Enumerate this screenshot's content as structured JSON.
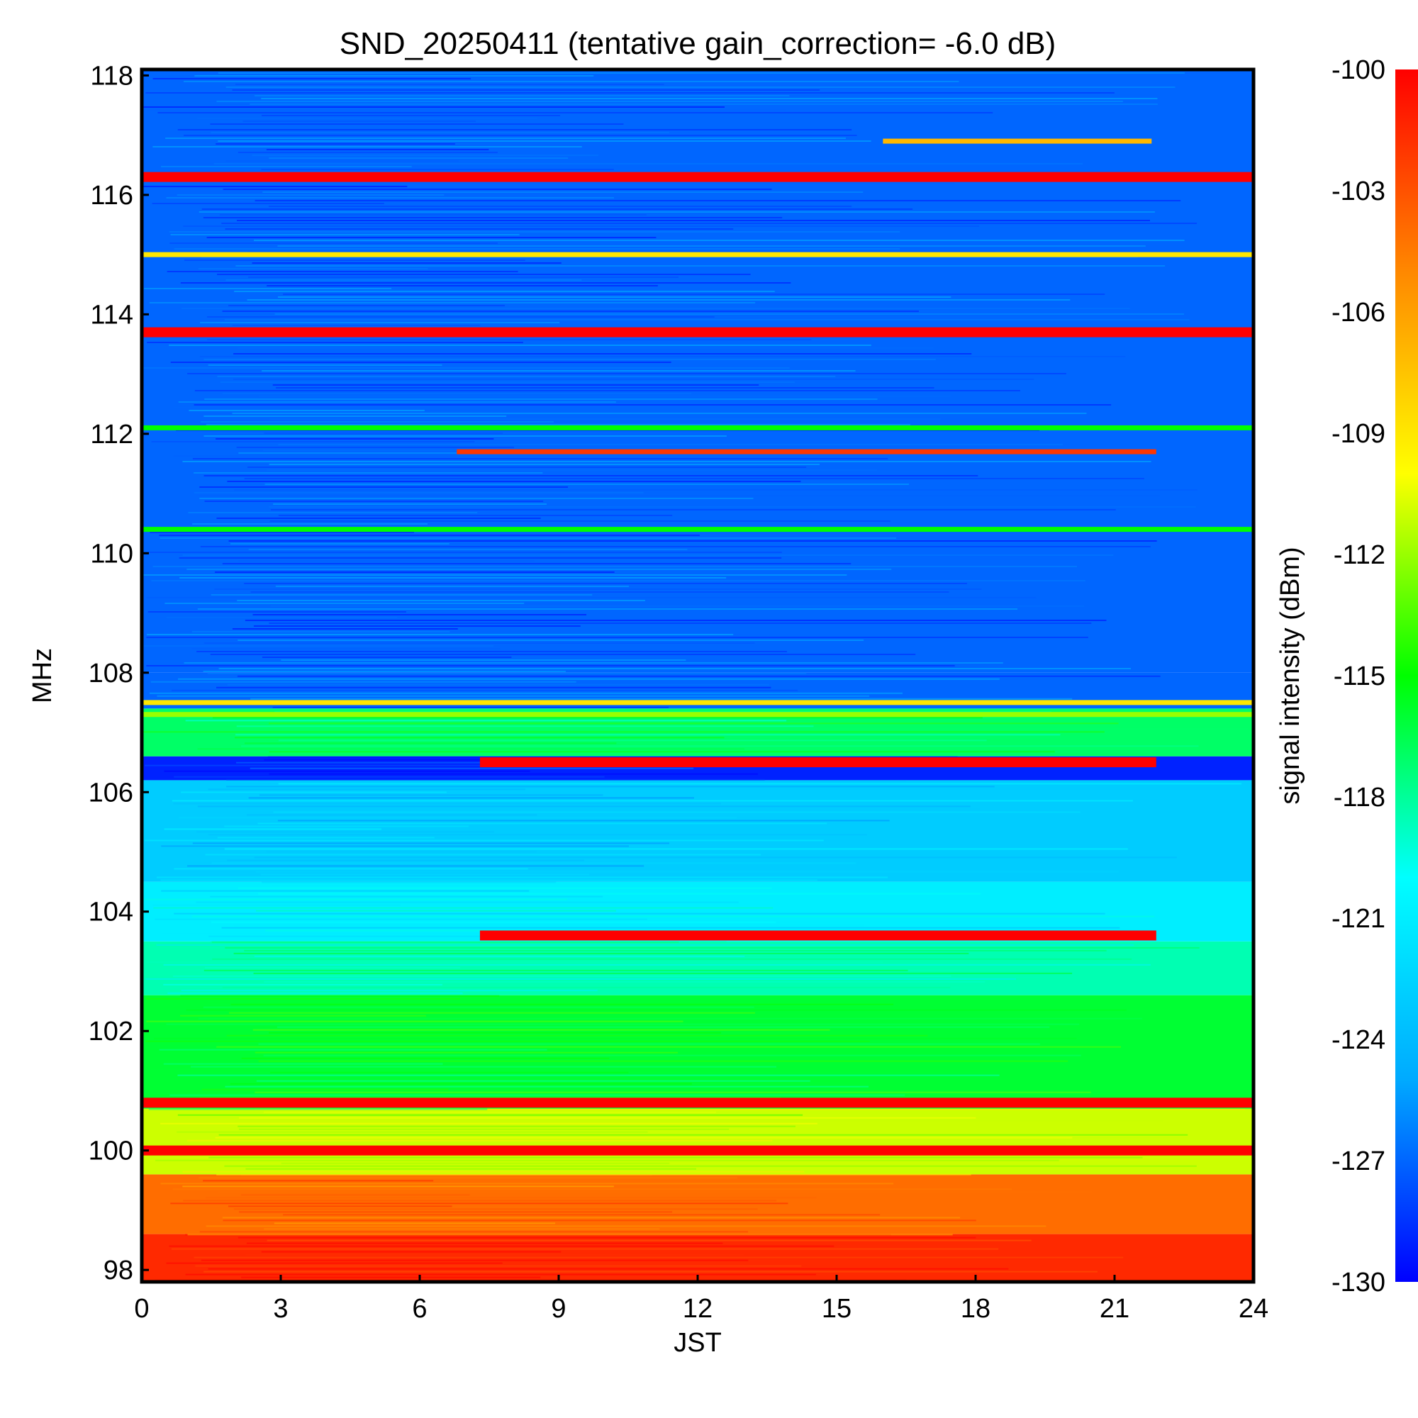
{
  "chart_data": {
    "type": "heatmap",
    "title": "SND_20250411 (tentative gain_correction= -6.0 dB)",
    "xlabel": "JST",
    "ylabel": "MHz",
    "colorbar_label": "signal intensity (dBm)",
    "xlim": [
      0,
      24
    ],
    "ylim": [
      97.8,
      118.1
    ],
    "clim": [
      -130,
      -100
    ],
    "x_ticks": [
      "0",
      "3",
      "6",
      "9",
      "12",
      "15",
      "18",
      "21",
      "24"
    ],
    "y_ticks": [
      "98",
      "100",
      "102",
      "104",
      "106",
      "108",
      "110",
      "112",
      "114",
      "116",
      "118"
    ],
    "colorbar_ticks": [
      "-100",
      "-103",
      "-106",
      "-109",
      "-112",
      "-115",
      "-118",
      "-121",
      "-124",
      "-127",
      "-130"
    ],
    "colormap": [
      "#0000ff",
      "#00aaff",
      "#00ffff",
      "#00ff00",
      "#ffff00",
      "#ff8800",
      "#ff0000"
    ],
    "background_bands": [
      {
        "from": 97.8,
        "to": 98.6,
        "value": -101.5
      },
      {
        "from": 98.6,
        "to": 99.6,
        "value": -104
      },
      {
        "from": 99.6,
        "to": 100.7,
        "value": -111
      },
      {
        "from": 100.7,
        "to": 102.6,
        "value": -116
      },
      {
        "from": 102.6,
        "to": 103.5,
        "value": -118.5
      },
      {
        "from": 103.5,
        "to": 104.5,
        "value": -121
      },
      {
        "from": 104.5,
        "to": 106.2,
        "value": -123
      },
      {
        "from": 106.2,
        "to": 106.6,
        "value": -129
      },
      {
        "from": 106.6,
        "to": 107.4,
        "value": -117
      },
      {
        "from": 107.4,
        "to": 108.0,
        "value": -127
      },
      {
        "from": 108.0,
        "to": 118.1,
        "value": -127
      }
    ],
    "persistent_signals": [
      {
        "freq": 116.3,
        "from": 0,
        "to": 24,
        "value": -100
      },
      {
        "freq": 113.7,
        "from": 0,
        "to": 24,
        "value": -100
      },
      {
        "freq": 115.0,
        "from": 0,
        "to": 24,
        "value": -109
      },
      {
        "freq": 100.0,
        "from": 0,
        "to": 24,
        "value": -100
      },
      {
        "freq": 100.8,
        "from": 0,
        "to": 24,
        "value": -100
      },
      {
        "freq": 106.5,
        "from": 7.3,
        "to": 21.9,
        "value": -100
      },
      {
        "freq": 103.6,
        "from": 7.3,
        "to": 21.9,
        "value": -100
      },
      {
        "freq": 111.7,
        "from": 6.8,
        "to": 21.9,
        "value": -102
      },
      {
        "freq": 116.9,
        "from": 16.0,
        "to": 21.8,
        "value": -107
      },
      {
        "freq": 107.5,
        "from": 0,
        "to": 24,
        "value": -109
      },
      {
        "freq": 107.3,
        "from": 0,
        "to": 24,
        "value": -112
      },
      {
        "freq": 112.1,
        "from": 0,
        "to": 24,
        "value": -115
      },
      {
        "freq": 110.4,
        "from": 0,
        "to": 24,
        "value": -115
      }
    ]
  }
}
